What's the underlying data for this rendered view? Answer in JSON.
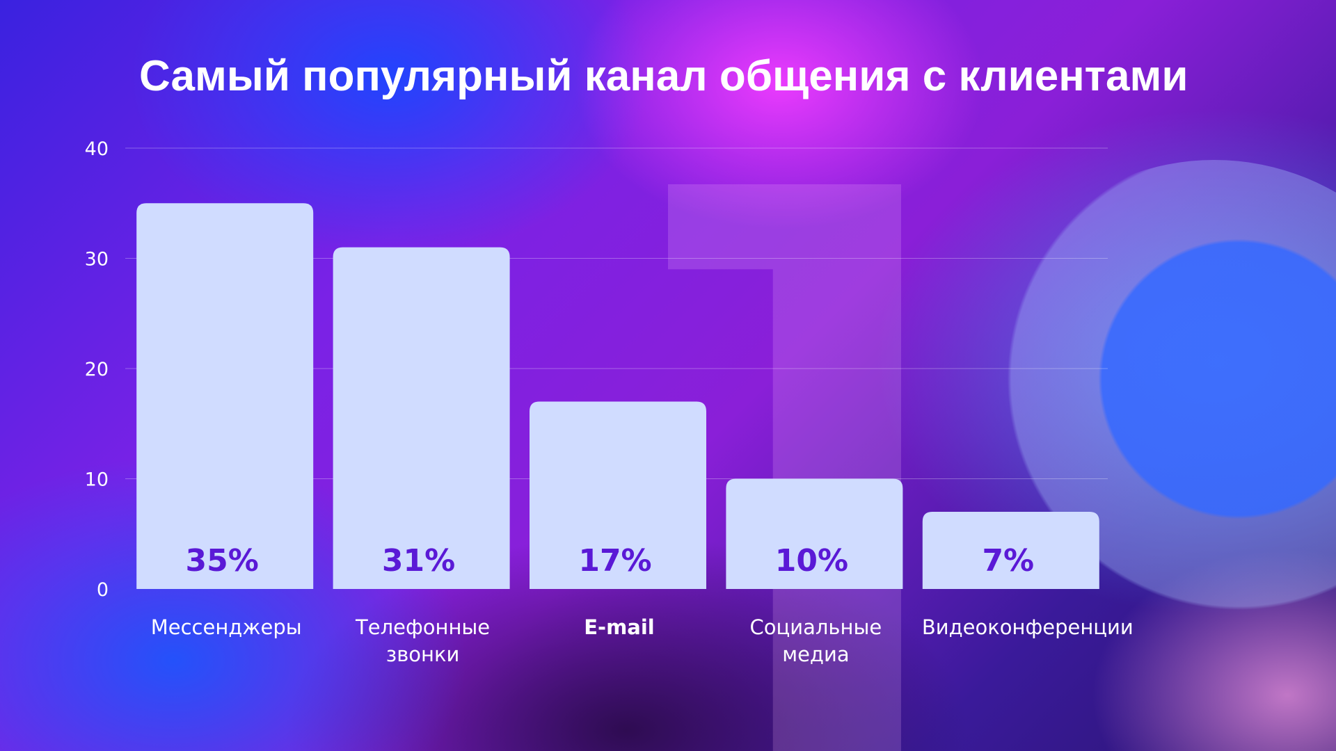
{
  "slide": {
    "title": "Самый популярный канал общения с клиентами"
  },
  "colors": {
    "bar": "#d0dcff",
    "value_label": "#5a19d6",
    "gridline": "rgba(255,255,255,0.3)"
  },
  "chart_data": {
    "type": "bar",
    "title": "Самый популярный канал общения с клиентами",
    "categories": [
      [
        "Мессенджеры"
      ],
      [
        "Телефонные",
        "звонки"
      ],
      [
        "E-mail"
      ],
      [
        "Социальные",
        "медиа"
      ],
      [
        "Видеоконференции"
      ]
    ],
    "values": [
      35,
      31,
      17,
      10,
      7
    ],
    "value_labels": [
      "35%",
      "31%",
      "17%",
      "10%",
      "7%"
    ],
    "bold_category_index": 2,
    "yticks": [
      "0",
      "10",
      "20",
      "30",
      "40"
    ],
    "ylim": [
      0,
      40
    ],
    "grid": true,
    "legend": false
  }
}
